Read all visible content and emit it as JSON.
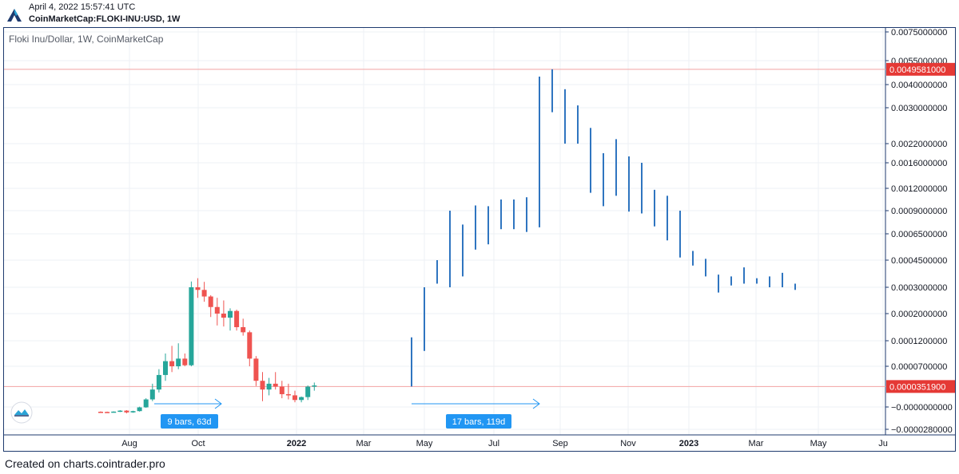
{
  "header": {
    "timestamp": "April 4, 2022 15:57:41 UTC",
    "symbol": "CoinMarketCap:FLOKI-INU:USD, 1W"
  },
  "footer": {
    "credit": "Created on charts.cointrader.pro"
  },
  "colors": {
    "up": "#26a69a",
    "down": "#ef5350",
    "projection": "#2f75c0",
    "marker": "#e53935",
    "frame": "#1e3a6e",
    "measure": "#2196f3"
  },
  "icons": {
    "logo": "cointrader-logo-icon",
    "badge": "cointrader-badge-icon"
  },
  "chart_data": {
    "type": "candlestick",
    "title": "Floki Inu/Dollar, 1W, CoinMarketCap",
    "scale": "log-like",
    "price_axis_labels": [
      "0.0075000000",
      "0.0055000000",
      "0.0040000000",
      "0.0030000000",
      "0.0022000000",
      "0.0016000000",
      "0.0012000000",
      "0.0009000000",
      "0.0006500000",
      "0.0004500000",
      "0.0003000000",
      "0.0002000000",
      "0.0001200000",
      "0.0000700000",
      "−0.0000000000",
      "−0.0000280000"
    ],
    "time_axis_labels": [
      "Aug",
      "Oct",
      "2022",
      "Mar",
      "May",
      "Jul",
      "Sep",
      "Nov",
      "2023",
      "Mar",
      "May",
      "Ju"
    ],
    "time_axis_bold": [
      "2022",
      "2023"
    ],
    "price_markers": [
      {
        "value": "0.0049581000",
        "label": "0.0049581000"
      },
      {
        "value": "0.0000351900",
        "label": "0.0000351900"
      }
    ],
    "candles": [
      [
        -6e-06,
        -5.5e-06,
        -6.6e-06,
        -6.2e-06
      ],
      [
        -6.2e-06,
        -5.8e-06,
        -7e-06,
        -6.6e-06
      ],
      [
        -6.6e-06,
        -5.5e-06,
        -7e-06,
        -5.8e-06
      ],
      [
        -5.8e-06,
        -4e-06,
        -6.3e-06,
        -4.6e-06
      ],
      [
        -4.6e-06,
        -4e-06,
        -8e-06,
        -6.8e-06
      ],
      [
        -6.8e-06,
        -4.8e-06,
        -7.2e-06,
        -5.2e-06
      ],
      [
        -5.2e-06,
        5e-07,
        -5.8e-06,
        -5e-07
      ],
      [
        -5e-07,
        1.5e-05,
        -1e-06,
        1.3e-05
      ],
      [
        1.3e-05,
        4e-05,
        1e-05,
        3e-05
      ],
      [
        3e-05,
        6.5e-05,
        2.5e-05,
        5.5e-05
      ],
      [
        5.5e-05,
        9.5e-05,
        4.5e-05,
        8e-05
      ],
      [
        8e-05,
        0.00011,
        6e-05,
        7e-05
      ],
      [
        7e-05,
        0.000115,
        6.5e-05,
        8.5e-05
      ],
      [
        8.5e-05,
        9.5e-05,
        7e-05,
        7.2e-05
      ],
      [
        7.2e-05,
        0.000332,
        7e-05,
        0.0003
      ],
      [
        0.0003,
        0.00035,
        0.00026,
        0.00029
      ],
      [
        0.00029,
        0.00033,
        0.000245,
        0.000265
      ],
      [
        0.000265,
        0.00027,
        0.00019,
        0.000225
      ],
      [
        0.000225,
        0.00026,
        0.000165,
        0.0002
      ],
      [
        0.0002,
        0.00025,
        0.000162,
        0.000188
      ],
      [
        0.000188,
        0.00022,
        0.00015,
        0.00021
      ],
      [
        0.00021,
        0.000215,
        0.00015,
        0.00016
      ],
      [
        0.00016,
        0.000185,
        0.000135,
        0.000145
      ],
      [
        0.000145,
        0.00015,
        7e-05,
        8.5e-05
      ],
      [
        8.5e-05,
        9e-05,
        3.6e-05,
        4.5e-05
      ],
      [
        4.5e-05,
        6e-05,
        1e-05,
        3e-05
      ],
      [
        3e-05,
        5e-05,
        2e-05,
        4e-05
      ],
      [
        4e-05,
        6e-05,
        3e-05,
        3.5e-05
      ],
      [
        3.5e-05,
        4.5e-05,
        1.5e-05,
        2.2e-05
      ],
      [
        2.2e-05,
        4e-05,
        1.3e-05,
        2e-05
      ],
      [
        2e-05,
        2.8e-05,
        8e-06,
        1.2e-05
      ],
      [
        1.2e-05,
        1.8e-05,
        8e-06,
        1.7e-05
      ],
      [
        1.7e-05,
        3.7e-05,
        1.2e-05,
        3.5e-05
      ],
      [
        3.5e-05,
        4.2e-05,
        2.8e-05,
        3.7e-05
      ]
    ],
    "projection_bars": [
      [
        3.519e-05,
        0.00013
      ],
      [
        0.0001,
        0.0003
      ],
      [
        0.00032,
        0.00045
      ],
      [
        0.0003,
        0.0009
      ],
      [
        0.00036,
        0.00075
      ],
      [
        0.00053,
        0.00097
      ],
      [
        0.00057,
        0.00096
      ],
      [
        0.0007,
        0.00105
      ],
      [
        0.0007,
        0.00105
      ],
      [
        0.00067,
        0.00108
      ],
      [
        0.00072,
        0.0045
      ],
      [
        0.0029,
        0.0049581
      ],
      [
        0.0022,
        0.0038
      ],
      [
        0.0022,
        0.0031
      ],
      [
        0.00114,
        0.00255
      ],
      [
        0.00096,
        0.0019
      ],
      [
        0.0011,
        0.0023
      ],
      [
        0.00089,
        0.0018
      ],
      [
        0.00087,
        0.0016
      ],
      [
        0.00073,
        0.00118
      ],
      [
        0.0006,
        0.0011
      ],
      [
        0.00047,
        0.0009
      ],
      [
        0.00042,
        0.00052
      ],
      [
        0.00036,
        0.00046
      ],
      [
        0.00028,
        0.00037
      ],
      [
        0.00031,
        0.00036
      ],
      [
        0.00032,
        0.00041
      ],
      [
        0.00032,
        0.00035
      ],
      [
        0.0003,
        0.00036
      ],
      [
        0.0003,
        0.00038
      ],
      [
        0.00029,
        0.00032
      ]
    ],
    "measurements": [
      {
        "label": "9 bars, 63d"
      },
      {
        "label": "17 bars, 119d"
      }
    ]
  }
}
